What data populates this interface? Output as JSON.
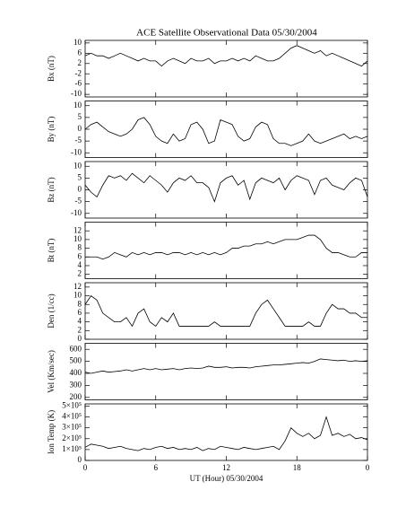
{
  "chart_data": [
    {
      "type": "line",
      "title": "ACE Satellite Observational Data   05/30/2004",
      "ylabel": "Bx (nT)",
      "x": [
        0,
        0.5,
        1,
        1.5,
        2,
        2.5,
        3,
        3.5,
        4,
        4.5,
        5,
        5.5,
        6,
        6.5,
        7,
        7.5,
        8,
        8.5,
        9,
        9.5,
        10,
        10.5,
        11,
        11.5,
        12,
        12.5,
        13,
        13.5,
        14,
        14.5,
        15,
        15.5,
        16,
        16.5,
        17,
        17.5,
        18,
        18.5,
        19,
        19.5,
        20,
        20.5,
        21,
        21.5,
        22,
        22.5,
        23,
        23.5,
        24
      ],
      "series": [
        {
          "name": "Bx",
          "color": "#000000",
          "values": [
            5,
            6,
            5,
            5,
            4,
            5,
            6,
            5,
            4,
            3,
            4,
            3,
            3,
            1,
            3,
            4,
            3,
            2,
            4,
            3,
            3,
            4,
            2,
            3,
            3,
            4,
            3,
            4,
            3,
            5,
            4,
            3,
            3,
            4,
            6,
            8,
            9,
            8,
            7,
            6,
            7,
            5,
            6,
            5,
            4,
            3,
            2,
            1,
            3
          ]
        }
      ],
      "xlim": [
        0,
        24
      ],
      "ylim": [
        -11,
        11
      ],
      "yticks": [
        -10,
        -6,
        -2,
        2,
        6,
        10
      ]
    },
    {
      "type": "line",
      "ylabel": "By (nT)",
      "x": [
        0,
        0.5,
        1,
        1.5,
        2,
        2.5,
        3,
        3.5,
        4,
        4.5,
        5,
        5.5,
        6,
        6.5,
        7,
        7.5,
        8,
        8.5,
        9,
        9.5,
        10,
        10.5,
        11,
        11.5,
        12,
        12.5,
        13,
        13.5,
        14,
        14.5,
        15,
        15.5,
        16,
        16.5,
        17,
        17.5,
        18,
        18.5,
        19,
        19.5,
        20,
        20.5,
        21,
        21.5,
        22,
        22.5,
        23,
        23.5,
        24
      ],
      "series": [
        {
          "name": "By",
          "color": "#000000",
          "values": [
            0,
            2,
            3,
            1,
            -1,
            -2,
            -3,
            -2,
            0,
            4,
            5,
            2,
            -3,
            -5,
            -6,
            -2,
            -5,
            -4,
            2,
            3,
            0,
            -6,
            -5,
            4,
            3,
            2,
            -3,
            -5,
            -4,
            1,
            3,
            2,
            -4,
            -6,
            -6,
            -7,
            -6,
            -5,
            -2,
            -5,
            -6,
            -5,
            -4,
            -3,
            -2,
            -4,
            -3,
            -4,
            -3
          ]
        }
      ],
      "xlim": [
        0,
        24
      ],
      "ylim": [
        -12,
        12
      ],
      "yticks": [
        -10,
        -5,
        0,
        5,
        10
      ]
    },
    {
      "type": "line",
      "ylabel": "Bz (nT)",
      "x": [
        0,
        0.5,
        1,
        1.5,
        2,
        2.5,
        3,
        3.5,
        4,
        4.5,
        5,
        5.5,
        6,
        6.5,
        7,
        7.5,
        8,
        8.5,
        9,
        9.5,
        10,
        10.5,
        11,
        11.5,
        12,
        12.5,
        13,
        13.5,
        14,
        14.5,
        15,
        15.5,
        16,
        16.5,
        17,
        17.5,
        18,
        18.5,
        19,
        19.5,
        20,
        20.5,
        21,
        21.5,
        22,
        22.5,
        23,
        23.5,
        24
      ],
      "series": [
        {
          "name": "Bz",
          "color": "#000000",
          "values": [
            2,
            -1,
            -3,
            2,
            6,
            5,
            6,
            4,
            7,
            5,
            3,
            6,
            4,
            2,
            -1,
            3,
            5,
            4,
            6,
            3,
            3,
            1,
            -5,
            3,
            5,
            6,
            2,
            4,
            -4,
            3,
            5,
            4,
            3,
            5,
            0,
            4,
            6,
            5,
            4,
            -2,
            4,
            5,
            2,
            1,
            0,
            3,
            5,
            4,
            -3
          ]
        }
      ],
      "xlim": [
        0,
        24
      ],
      "ylim": [
        -12,
        12
      ],
      "yticks": [
        -10,
        -5,
        0,
        5,
        10
      ]
    },
    {
      "type": "line",
      "ylabel": "Bt (nT)",
      "x": [
        0,
        0.5,
        1,
        1.5,
        2,
        2.5,
        3,
        3.5,
        4,
        4.5,
        5,
        5.5,
        6,
        6.5,
        7,
        7.5,
        8,
        8.5,
        9,
        9.5,
        10,
        10.5,
        11,
        11.5,
        12,
        12.5,
        13,
        13.5,
        14,
        14.5,
        15,
        15.5,
        16,
        16.5,
        17,
        17.5,
        18,
        18.5,
        19,
        19.5,
        20,
        20.5,
        21,
        21.5,
        22,
        22.5,
        23,
        23.5,
        24
      ],
      "series": [
        {
          "name": "Bt",
          "color": "#000000",
          "values": [
            6,
            6,
            6,
            5.5,
            6,
            7,
            6.5,
            6,
            7,
            6.5,
            7,
            6.5,
            7,
            7,
            6.5,
            7,
            7,
            6.5,
            7,
            6.5,
            7,
            6.5,
            7,
            6.5,
            7,
            8,
            8,
            8.5,
            8.5,
            9,
            9,
            9.5,
            9,
            9.5,
            10,
            10,
            10,
            10.5,
            11,
            11,
            10,
            8,
            7,
            7,
            6.5,
            6,
            6,
            7,
            7
          ]
        }
      ],
      "xlim": [
        0,
        24
      ],
      "ylim": [
        1,
        14
      ],
      "yticks": [
        2,
        4,
        6,
        8,
        10,
        12
      ]
    },
    {
      "type": "line",
      "ylabel": "Den (1/cc)",
      "x": [
        0,
        0.5,
        1,
        1.5,
        2,
        2.5,
        3,
        3.5,
        4,
        4.5,
        5,
        5.5,
        6,
        6.5,
        7,
        7.5,
        8,
        8.5,
        9,
        9.5,
        10,
        10.5,
        11,
        11.5,
        12,
        12.5,
        13,
        13.5,
        14,
        14.5,
        15,
        15.5,
        16,
        16.5,
        17,
        17.5,
        18,
        18.5,
        19,
        19.5,
        20,
        20.5,
        21,
        21.5,
        22,
        22.5,
        23,
        23.5,
        24
      ],
      "series": [
        {
          "name": "Den",
          "color": "#000000",
          "values": [
            8,
            10,
            9,
            6,
            5,
            4,
            4,
            5,
            3,
            6,
            7,
            4,
            3,
            5,
            4,
            6,
            3,
            3,
            3,
            3,
            3,
            3,
            4,
            3,
            3,
            3,
            3,
            3,
            3,
            6,
            8,
            9,
            7,
            5,
            3,
            3,
            3,
            3,
            4,
            3,
            3,
            6,
            8,
            7,
            7,
            6,
            6,
            5,
            5
          ]
        }
      ],
      "xlim": [
        0,
        24
      ],
      "ylim": [
        0,
        13
      ],
      "yticks": [
        0,
        2,
        4,
        6,
        8,
        10,
        12
      ]
    },
    {
      "type": "line",
      "ylabel": "Vel (Km/sec)",
      "x": [
        0,
        0.5,
        1,
        1.5,
        2,
        2.5,
        3,
        3.5,
        4,
        4.5,
        5,
        5.5,
        6,
        6.5,
        7,
        7.5,
        8,
        8.5,
        9,
        9.5,
        10,
        10.5,
        11,
        11.5,
        12,
        12.5,
        13,
        13.5,
        14,
        14.5,
        15,
        15.5,
        16,
        16.5,
        17,
        17.5,
        18,
        18.5,
        19,
        19.5,
        20,
        20.5,
        21,
        21.5,
        22,
        22.5,
        23,
        23.5,
        24
      ],
      "series": [
        {
          "name": "Vel",
          "color": "#000000",
          "values": [
            410,
            400,
            410,
            420,
            410,
            415,
            420,
            430,
            420,
            430,
            440,
            430,
            440,
            430,
            435,
            440,
            430,
            440,
            445,
            440,
            445,
            460,
            450,
            450,
            455,
            445,
            450,
            450,
            445,
            455,
            460,
            465,
            470,
            470,
            475,
            480,
            485,
            490,
            485,
            500,
            520,
            515,
            510,
            505,
            510,
            500,
            505,
            500,
            505
          ]
        }
      ],
      "xlim": [
        0,
        24
      ],
      "ylim": [
        180,
        650
      ],
      "yticks": [
        200,
        300,
        400,
        500,
        600
      ]
    },
    {
      "type": "line",
      "ylabel": "Ion Temp (K)",
      "xlabel": "UT (Hour)   05/30/2004",
      "x": [
        0,
        0.5,
        1,
        1.5,
        2,
        2.5,
        3,
        3.5,
        4,
        4.5,
        5,
        5.5,
        6,
        6.5,
        7,
        7.5,
        8,
        8.5,
        9,
        9.5,
        10,
        10.5,
        11,
        11.5,
        12,
        12.5,
        13,
        13.5,
        14,
        14.5,
        15,
        15.5,
        16,
        16.5,
        17,
        17.5,
        18,
        18.5,
        19,
        19.5,
        20,
        20.5,
        21,
        21.5,
        22,
        22.5,
        23,
        23.5,
        24
      ],
      "series": [
        {
          "name": "Ion Temp",
          "color": "#000000",
          "values": [
            120000,
            150000,
            140000,
            130000,
            110000,
            120000,
            130000,
            110000,
            100000,
            90000,
            110000,
            100000,
            120000,
            130000,
            110000,
            120000,
            100000,
            110000,
            100000,
            120000,
            90000,
            110000,
            100000,
            130000,
            120000,
            110000,
            100000,
            120000,
            110000,
            100000,
            110000,
            120000,
            130000,
            100000,
            180000,
            300000,
            250000,
            220000,
            250000,
            200000,
            230000,
            400000,
            230000,
            250000,
            220000,
            240000,
            200000,
            210000,
            190000
          ]
        }
      ],
      "xlim": [
        0,
        24
      ],
      "ylim": [
        0,
        520000
      ],
      "yticks": [
        0,
        {
          "value": 100000,
          "label": "1×10⁵"
        },
        {
          "value": 200000,
          "label": "2×10⁵"
        },
        {
          "value": 300000,
          "label": "3×10⁵"
        },
        {
          "value": 400000,
          "label": "4×10⁵"
        },
        {
          "value": 500000,
          "label": "5×10⁵"
        }
      ],
      "xticks": [
        0,
        6,
        12,
        18,
        {
          "value": 24,
          "label": "0"
        }
      ]
    }
  ]
}
